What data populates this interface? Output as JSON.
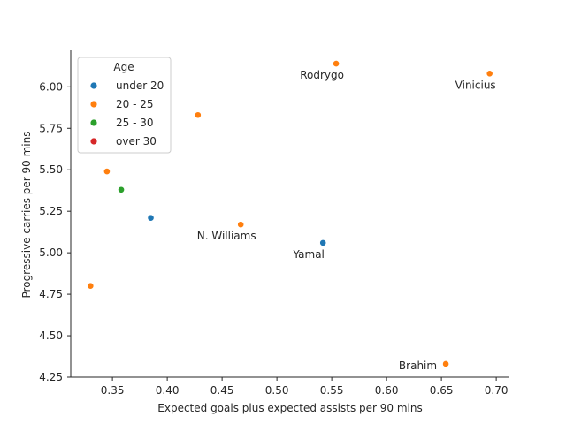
{
  "chart_data": {
    "type": "scatter",
    "xlabel": "Expected goals plus expected assists per 90 mins",
    "ylabel": "Progressive carries per 90 mins",
    "xlim": [
      0.312,
      0.712
    ],
    "ylim": [
      4.25,
      6.22
    ],
    "xticks": [
      0.35,
      0.4,
      0.45,
      0.5,
      0.55,
      0.6,
      0.65,
      0.7
    ],
    "xtick_labels": [
      "0.35",
      "0.40",
      "0.45",
      "0.50",
      "0.55",
      "0.60",
      "0.65",
      "0.70"
    ],
    "yticks": [
      4.25,
      4.5,
      4.75,
      5.0,
      5.25,
      5.5,
      5.75,
      6.0
    ],
    "ytick_labels": [
      "4.25",
      "4.50",
      "4.75",
      "5.00",
      "5.25",
      "5.50",
      "5.75",
      "6.00"
    ],
    "grid": false,
    "legend": {
      "title": "Age",
      "placement": "top-left",
      "entries": [
        {
          "label": "under 20",
          "color": "#1f77b4"
        },
        {
          "label": "20 - 25",
          "color": "#ff7f0e"
        },
        {
          "label": "25 - 30",
          "color": "#2ca02c"
        },
        {
          "label": "over 30",
          "color": "#d62728"
        }
      ]
    },
    "points": [
      {
        "x": 0.554,
        "y": 6.14,
        "group": "20 - 25",
        "label": "Rodrygo"
      },
      {
        "x": 0.694,
        "y": 6.08,
        "group": "20 - 25",
        "label": "Vinicius"
      },
      {
        "x": 0.428,
        "y": 5.83,
        "group": "20 - 25",
        "label": ""
      },
      {
        "x": 0.345,
        "y": 5.49,
        "group": "20 - 25",
        "label": ""
      },
      {
        "x": 0.358,
        "y": 5.38,
        "group": "25 - 30",
        "label": ""
      },
      {
        "x": 0.385,
        "y": 5.21,
        "group": "under 20",
        "label": ""
      },
      {
        "x": 0.467,
        "y": 5.17,
        "group": "20 - 25",
        "label": "N. Williams"
      },
      {
        "x": 0.542,
        "y": 5.06,
        "group": "under 20",
        "label": "Yamal"
      },
      {
        "x": 0.33,
        "y": 4.8,
        "group": "20 - 25",
        "label": ""
      },
      {
        "x": 0.654,
        "y": 4.33,
        "group": "20 - 25",
        "label": "Brahim"
      }
    ]
  }
}
